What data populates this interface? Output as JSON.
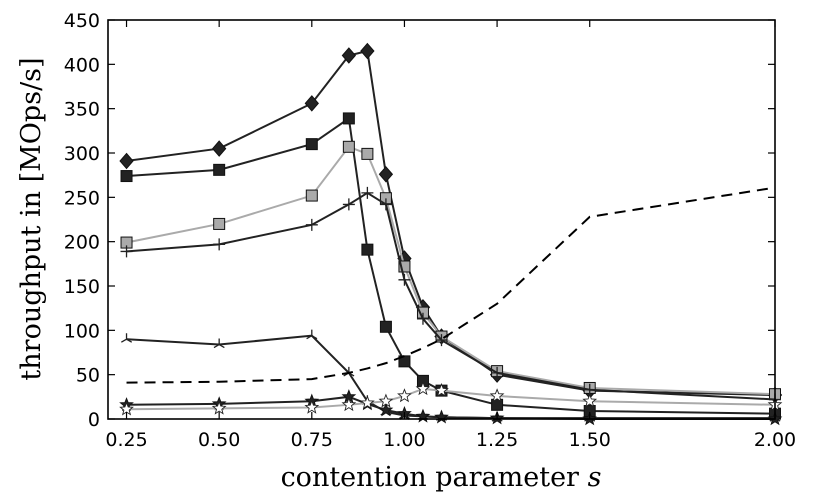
{
  "chart_data": {
    "type": "line",
    "xlabel": "contention parameter",
    "xlabel_symbol": "s",
    "ylabel": "throughput in [MOps/s]",
    "xlim": [
      0.2,
      2.0
    ],
    "ylim": [
      0,
      450
    ],
    "xticks": [
      "0.25",
      "0.50",
      "0.75",
      "1.00",
      "1.25",
      "1.50",
      "2.00"
    ],
    "xtick_values": [
      0.25,
      0.5,
      0.75,
      1.0,
      1.25,
      1.5,
      2.0
    ],
    "yticks": [
      "0",
      "50",
      "100",
      "150",
      "200",
      "250",
      "300",
      "350",
      "400",
      "450"
    ],
    "ytick_values": [
      0,
      50,
      100,
      150,
      200,
      250,
      300,
      350,
      400,
      450
    ],
    "grid": false,
    "series": [
      {
        "marker": "diamond",
        "color": "#222222",
        "fill": "#222222",
        "x": [
          0.25,
          0.5,
          0.75,
          0.85,
          0.9,
          0.95,
          1.0,
          1.05,
          1.1,
          1.25,
          1.5,
          2.0
        ],
        "y": [
          291,
          305,
          356,
          410,
          415,
          276,
          181,
          126,
          93,
          50,
          32,
          27
        ]
      },
      {
        "marker": "square",
        "color": "#222222",
        "fill": "#222222",
        "x": [
          0.25,
          0.5,
          0.75,
          0.85,
          0.9,
          0.95,
          1.0,
          1.05,
          1.1,
          1.25,
          1.5,
          2.0
        ],
        "y": [
          274,
          281,
          310,
          339,
          191,
          104,
          65,
          43,
          32,
          16,
          9,
          6
        ]
      },
      {
        "marker": "square",
        "color": "#aaaaaa",
        "fill": "#aaaaaa",
        "x": [
          0.25,
          0.5,
          0.75,
          0.85,
          0.9,
          0.95,
          1.0,
          1.05,
          1.1,
          1.25,
          1.5,
          2.0
        ],
        "y": [
          199,
          220,
          252,
          307,
          299,
          249,
          172,
          120,
          93,
          54,
          35,
          28
        ]
      },
      {
        "marker": "plus",
        "color": "#222222",
        "fill": "none",
        "x": [
          0.25,
          0.5,
          0.75,
          0.85,
          0.9,
          0.95,
          1.0,
          1.05,
          1.1,
          1.25,
          1.5,
          2.0
        ],
        "y": [
          189,
          197,
          219,
          242,
          255,
          242,
          157,
          113,
          89,
          52,
          33,
          22
        ]
      },
      {
        "marker": "tri",
        "color": "#222222",
        "fill": "none",
        "x": [
          0.25,
          0.5,
          0.75,
          0.85,
          0.9,
          0.95,
          1.0,
          1.05,
          1.1,
          1.25,
          1.5,
          2.0
        ],
        "y": [
          90,
          84,
          94,
          52,
          20,
          8,
          4,
          3,
          2,
          1,
          1,
          1
        ]
      },
      {
        "marker": "star",
        "color": "#222222",
        "fill": "#222222",
        "x": [
          0.25,
          0.5,
          0.75,
          0.85,
          0.9,
          0.95,
          1.0,
          1.05,
          1.1,
          1.25,
          1.5,
          2.0
        ],
        "y": [
          16,
          17,
          20,
          25,
          17,
          10,
          6,
          3,
          2,
          1,
          0,
          0
        ]
      },
      {
        "marker": "star",
        "color": "#aaaaaa",
        "fill": "#ffffff",
        "x": [
          0.25,
          0.5,
          0.75,
          0.85,
          0.9,
          0.95,
          1.0,
          1.05,
          1.1,
          1.25,
          1.5,
          2.0
        ],
        "y": [
          11,
          12,
          13,
          16,
          18,
          20,
          26,
          34,
          32,
          26,
          20,
          16
        ]
      },
      {
        "marker": "none",
        "color": "#000000",
        "fill": "none",
        "dashed": true,
        "x": [
          0.25,
          0.5,
          0.75,
          0.85,
          0.9,
          0.95,
          1.0,
          1.05,
          1.1,
          1.25,
          1.5,
          2.0
        ],
        "y": [
          41,
          42,
          45,
          52,
          57,
          63,
          71,
          80,
          90,
          130,
          228,
          261
        ]
      }
    ]
  }
}
